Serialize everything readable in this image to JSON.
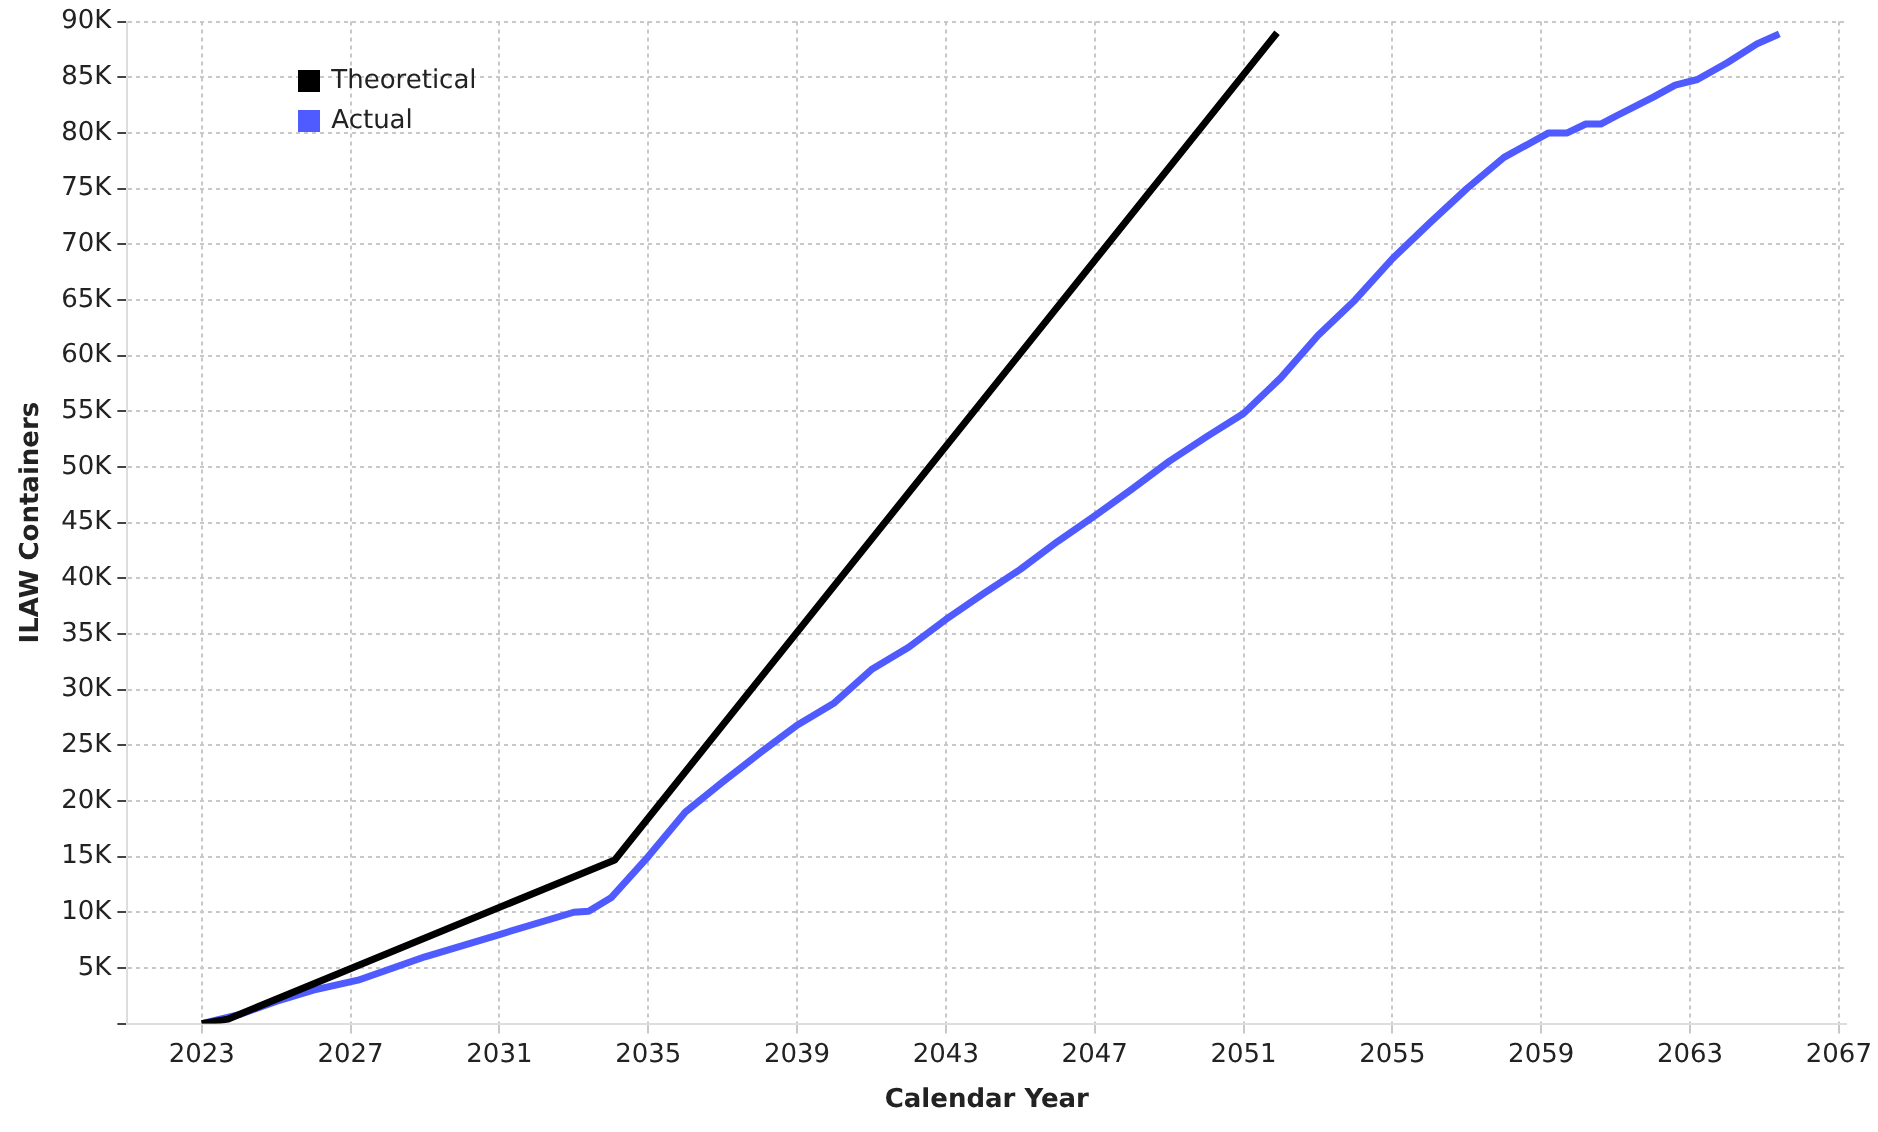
{
  "chart_data": {
    "type": "line",
    "xlabel": "Calendar Year",
    "ylabel": "ILAW Containers",
    "xlim": [
      2021,
      2067.2
    ],
    "xticks": [
      2023,
      2027,
      2031,
      2035,
      2039,
      2043,
      2047,
      2051,
      2055,
      2059,
      2063,
      2067
    ],
    "ylim": [
      0,
      90000
    ],
    "yticks": [
      {
        "value": 0,
        "label": null
      },
      {
        "value": 5000,
        "label": "5K"
      },
      {
        "value": 10000,
        "label": "10K"
      },
      {
        "value": 15000,
        "label": "15K"
      },
      {
        "value": 20000,
        "label": "20K"
      },
      {
        "value": 25000,
        "label": "25K"
      },
      {
        "value": 30000,
        "label": "30K"
      },
      {
        "value": 35000,
        "label": "35K"
      },
      {
        "value": 40000,
        "label": "40K"
      },
      {
        "value": 45000,
        "label": "45K"
      },
      {
        "value": 50000,
        "label": "50K"
      },
      {
        "value": 55000,
        "label": "55K"
      },
      {
        "value": 60000,
        "label": "60K"
      },
      {
        "value": 65000,
        "label": "65K"
      },
      {
        "value": 70000,
        "label": "70K"
      },
      {
        "value": 75000,
        "label": "75K"
      },
      {
        "value": 80000,
        "label": "80K"
      },
      {
        "value": 85000,
        "label": "85K"
      },
      {
        "value": 90000,
        "label": "90K"
      }
    ],
    "grid": true,
    "legend": "top left",
    "marker": "none",
    "line_style": "solid",
    "series": [
      {
        "name": "Theoretical",
        "color": "#000000",
        "x": [
          2023,
          2023.7,
          2034.1,
          2051.9
        ],
        "values": [
          0,
          400,
          14700,
          89000
        ]
      },
      {
        "name": "Actual",
        "color": "#4f5bff",
        "x": [
          2023,
          2024,
          2025,
          2026,
          2027.2,
          2029,
          2031,
          2033,
          2033.4,
          2034,
          2035,
          2036,
          2037,
          2038,
          2039,
          2040,
          2041,
          2042,
          2043,
          2044,
          2045,
          2046,
          2047,
          2048,
          2049,
          2050,
          2051,
          2052,
          2053,
          2054,
          2055,
          2056,
          2057,
          2058,
          2059.2,
          2059.7,
          2060.2,
          2060.6,
          2061,
          2062,
          2062.6,
          2063.2,
          2064,
          2064.8,
          2065.4
        ],
        "values": [
          0,
          800,
          2000,
          3000,
          3900,
          6000,
          8000,
          10000,
          10100,
          11300,
          15000,
          19000,
          21700,
          24300,
          26800,
          28800,
          31800,
          33800,
          36300,
          38600,
          40800,
          43300,
          45600,
          48000,
          50500,
          52700,
          54800,
          58000,
          61800,
          65000,
          68700,
          71900,
          75000,
          77800,
          80000,
          80000,
          80800,
          80800,
          81500,
          83200,
          84300,
          84800,
          86300,
          88000,
          88900
        ]
      }
    ]
  }
}
